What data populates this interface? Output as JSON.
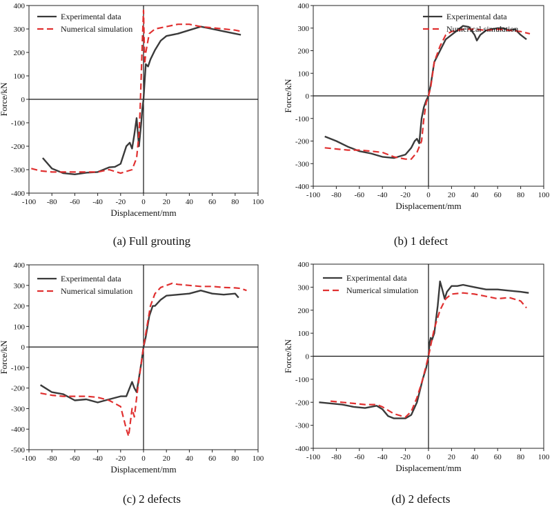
{
  "chart_data": [
    {
      "type": "line",
      "caption": "(a) Full grouting",
      "xlabel": "Displacement/mm",
      "ylabel": "Force/kN",
      "xlim": [
        -100,
        100
      ],
      "ylim": [
        -400,
        400
      ],
      "xticks": [
        "-100",
        "-80",
        "-60",
        "-40",
        "-20",
        "0",
        "20",
        "40",
        "60",
        "80",
        "100"
      ],
      "yticks": [
        "-400",
        "-300",
        "-200",
        "-100",
        "0",
        "100",
        "200",
        "300",
        "400"
      ],
      "legend_placement": "top-left",
      "series": [
        {
          "name": "Experimental data",
          "color": "#3a3a3a",
          "dash": "solid",
          "points": [
            [
              -88,
              -250
            ],
            [
              -80,
              -295
            ],
            [
              -70,
              -315
            ],
            [
              -60,
              -320
            ],
            [
              -50,
              -313
            ],
            [
              -40,
              -310
            ],
            [
              -30,
              -290
            ],
            [
              -25,
              -288
            ],
            [
              -20,
              -275
            ],
            [
              -15,
              -200
            ],
            [
              -12,
              -185
            ],
            [
              -10,
              -210
            ],
            [
              -8,
              -150
            ],
            [
              -6,
              -80
            ],
            [
              -4,
              -200
            ],
            [
              -2,
              -100
            ],
            [
              -1,
              -40
            ],
            [
              0,
              0
            ],
            [
              1,
              80
            ],
            [
              2,
              150
            ],
            [
              4,
              140
            ],
            [
              6,
              170
            ],
            [
              10,
              210
            ],
            [
              15,
              250
            ],
            [
              20,
              270
            ],
            [
              30,
              280
            ],
            [
              40,
              295
            ],
            [
              50,
              310
            ],
            [
              60,
              300
            ],
            [
              70,
              290
            ],
            [
              80,
              280
            ],
            [
              85,
              275
            ]
          ]
        },
        {
          "name": "Numerical simulation",
          "color": "#e03030",
          "dash": "dashed",
          "points": [
            [
              -98,
              -295
            ],
            [
              -90,
              -305
            ],
            [
              -80,
              -310
            ],
            [
              -70,
              -310
            ],
            [
              -60,
              -310
            ],
            [
              -50,
              -310
            ],
            [
              -40,
              -310
            ],
            [
              -30,
              -300
            ],
            [
              -20,
              -315
            ],
            [
              -10,
              -300
            ],
            [
              -6,
              -250
            ],
            [
              -4,
              -150
            ],
            [
              -3,
              -50
            ],
            [
              -2,
              100
            ],
            [
              -1,
              250
            ],
            [
              0,
              380
            ],
            [
              1,
              150
            ],
            [
              2,
              200
            ],
            [
              5,
              280
            ],
            [
              10,
              300
            ],
            [
              20,
              310
            ],
            [
              30,
              320
            ],
            [
              40,
              320
            ],
            [
              50,
              310
            ],
            [
              60,
              305
            ],
            [
              70,
              300
            ],
            [
              80,
              295
            ],
            [
              85,
              290
            ]
          ]
        }
      ]
    },
    {
      "type": "line",
      "caption": "(b) 1 defect",
      "xlabel": "Displacement/mm",
      "ylabel": "Force/kN",
      "xlim": [
        -100,
        100
      ],
      "ylim": [
        -400,
        400
      ],
      "xticks": [
        "-100",
        "-80",
        "-60",
        "-40",
        "-20",
        "0",
        "20",
        "40",
        "60",
        "80",
        "100"
      ],
      "yticks": [
        "-400",
        "-300",
        "-200",
        "-100",
        "0",
        "100",
        "200",
        "300",
        "400"
      ],
      "legend_placement": "top-right",
      "series": [
        {
          "name": "Experimental data",
          "color": "#3a3a3a",
          "dash": "solid",
          "points": [
            [
              -90,
              -180
            ],
            [
              -80,
              -200
            ],
            [
              -70,
              -225
            ],
            [
              -60,
              -245
            ],
            [
              -50,
              -255
            ],
            [
              -40,
              -270
            ],
            [
              -30,
              -275
            ],
            [
              -20,
              -260
            ],
            [
              -15,
              -230
            ],
            [
              -12,
              -200
            ],
            [
              -10,
              -190
            ],
            [
              -8,
              -210
            ],
            [
              -6,
              -100
            ],
            [
              -4,
              -50
            ],
            [
              -2,
              -20
            ],
            [
              0,
              0
            ],
            [
              2,
              50
            ],
            [
              5,
              150
            ],
            [
              10,
              200
            ],
            [
              15,
              250
            ],
            [
              20,
              270
            ],
            [
              25,
              290
            ],
            [
              30,
              310
            ],
            [
              35,
              305
            ],
            [
              40,
              270
            ],
            [
              42,
              245
            ],
            [
              45,
              270
            ],
            [
              50,
              290
            ],
            [
              60,
              300
            ],
            [
              65,
              300
            ],
            [
              70,
              290
            ],
            [
              75,
              295
            ],
            [
              80,
              270
            ],
            [
              85,
              250
            ]
          ]
        },
        {
          "name": "Numerical simulation",
          "color": "#e03030",
          "dash": "dashed",
          "points": [
            [
              -90,
              -230
            ],
            [
              -80,
              -235
            ],
            [
              -70,
              -240
            ],
            [
              -60,
              -240
            ],
            [
              -50,
              -245
            ],
            [
              -40,
              -250
            ],
            [
              -30,
              -270
            ],
            [
              -20,
              -280
            ],
            [
              -15,
              -280
            ],
            [
              -10,
              -250
            ],
            [
              -6,
              -200
            ],
            [
              -4,
              -100
            ],
            [
              -2,
              -30
            ],
            [
              0,
              0
            ],
            [
              2,
              40
            ],
            [
              5,
              150
            ],
            [
              10,
              220
            ],
            [
              15,
              270
            ],
            [
              20,
              285
            ],
            [
              30,
              295
            ],
            [
              40,
              295
            ],
            [
              50,
              290
            ],
            [
              60,
              295
            ],
            [
              70,
              290
            ],
            [
              80,
              285
            ],
            [
              88,
              275
            ]
          ]
        }
      ]
    },
    {
      "type": "line",
      "caption": "(c) 2 defects",
      "xlabel": "Displacement/mm",
      "ylabel": "Force/kN",
      "xlim": [
        -100,
        100
      ],
      "ylim": [
        -500,
        400
      ],
      "xticks": [
        "-100",
        "-80",
        "-60",
        "-40",
        "-20",
        "0",
        "20",
        "40",
        "60",
        "80",
        "100"
      ],
      "yticks": [
        "-500",
        "-400",
        "-300",
        "-200",
        "-100",
        "0",
        "100",
        "200",
        "300",
        "400"
      ],
      "legend_placement": "top-left",
      "series": [
        {
          "name": "Experimental data",
          "color": "#3a3a3a",
          "dash": "solid",
          "points": [
            [
              -90,
              -185
            ],
            [
              -80,
              -220
            ],
            [
              -70,
              -230
            ],
            [
              -60,
              -260
            ],
            [
              -50,
              -255
            ],
            [
              -40,
              -270
            ],
            [
              -30,
              -255
            ],
            [
              -20,
              -240
            ],
            [
              -15,
              -240
            ],
            [
              -10,
              -170
            ],
            [
              -8,
              -200
            ],
            [
              -6,
              -220
            ],
            [
              -4,
              -150
            ],
            [
              -2,
              -80
            ],
            [
              0,
              0
            ],
            [
              2,
              50
            ],
            [
              5,
              150
            ],
            [
              8,
              200
            ],
            [
              10,
              200
            ],
            [
              15,
              230
            ],
            [
              20,
              250
            ],
            [
              30,
              255
            ],
            [
              40,
              260
            ],
            [
              50,
              275
            ],
            [
              60,
              260
            ],
            [
              70,
              255
            ],
            [
              80,
              260
            ],
            [
              83,
              240
            ]
          ]
        },
        {
          "name": "Numerical simulation",
          "color": "#e03030",
          "dash": "dashed",
          "points": [
            [
              -90,
              -225
            ],
            [
              -80,
              -235
            ],
            [
              -70,
              -240
            ],
            [
              -60,
              -240
            ],
            [
              -50,
              -240
            ],
            [
              -40,
              -245
            ],
            [
              -30,
              -260
            ],
            [
              -20,
              -290
            ],
            [
              -15,
              -400
            ],
            [
              -13,
              -435
            ],
            [
              -10,
              -300
            ],
            [
              -8,
              -340
            ],
            [
              -5,
              -200
            ],
            [
              -2,
              -80
            ],
            [
              0,
              0
            ],
            [
              3,
              100
            ],
            [
              6,
              200
            ],
            [
              10,
              260
            ],
            [
              15,
              290
            ],
            [
              20,
              300
            ],
            [
              25,
              310
            ],
            [
              30,
              305
            ],
            [
              40,
              300
            ],
            [
              50,
              295
            ],
            [
              60,
              295
            ],
            [
              70,
              290
            ],
            [
              80,
              288
            ],
            [
              85,
              285
            ],
            [
              90,
              275
            ]
          ]
        }
      ]
    },
    {
      "type": "line",
      "caption": "(d) 2 defects",
      "xlabel": "Displacement/mm",
      "ylabel": "Force/kN",
      "xlim": [
        -100,
        100
      ],
      "ylim": [
        -400,
        400
      ],
      "xticks": [
        "-100",
        "-80",
        "-60",
        "-40",
        "-20",
        "0",
        "20",
        "40",
        "60",
        "80",
        "100"
      ],
      "yticks": [
        "-400",
        "-300",
        "-200",
        "-100",
        "0",
        "100",
        "200",
        "300",
        "400"
      ],
      "legend_placement": "top-left",
      "series": [
        {
          "name": "Experimental data",
          "color": "#3a3a3a",
          "dash": "solid",
          "points": [
            [
              -95,
              -200
            ],
            [
              -85,
              -205
            ],
            [
              -75,
              -210
            ],
            [
              -65,
              -220
            ],
            [
              -55,
              -225
            ],
            [
              -45,
              -215
            ],
            [
              -40,
              -230
            ],
            [
              -35,
              -260
            ],
            [
              -30,
              -270
            ],
            [
              -25,
              -270
            ],
            [
              -20,
              -270
            ],
            [
              -15,
              -255
            ],
            [
              -10,
              -200
            ],
            [
              -5,
              -100
            ],
            [
              -2,
              -50
            ],
            [
              0,
              0
            ],
            [
              1,
              60
            ],
            [
              2,
              80
            ],
            [
              3,
              70
            ],
            [
              5,
              100
            ],
            [
              8,
              220
            ],
            [
              10,
              325
            ],
            [
              12,
              290
            ],
            [
              14,
              250
            ],
            [
              16,
              280
            ],
            [
              20,
              305
            ],
            [
              25,
              305
            ],
            [
              30,
              310
            ],
            [
              40,
              300
            ],
            [
              50,
              290
            ],
            [
              60,
              290
            ],
            [
              70,
              285
            ],
            [
              80,
              280
            ],
            [
              87,
              275
            ]
          ]
        },
        {
          "name": "Numerical simulation",
          "color": "#e03030",
          "dash": "dashed",
          "points": [
            [
              -85,
              -195
            ],
            [
              -75,
              -200
            ],
            [
              -65,
              -205
            ],
            [
              -55,
              -210
            ],
            [
              -45,
              -210
            ],
            [
              -40,
              -220
            ],
            [
              -30,
              -250
            ],
            [
              -20,
              -265
            ],
            [
              -15,
              -240
            ],
            [
              -10,
              -180
            ],
            [
              -5,
              -100
            ],
            [
              0,
              0
            ],
            [
              5,
              120
            ],
            [
              10,
              200
            ],
            [
              15,
              250
            ],
            [
              20,
              270
            ],
            [
              30,
              275
            ],
            [
              40,
              270
            ],
            [
              50,
              260
            ],
            [
              60,
              250
            ],
            [
              70,
              255
            ],
            [
              80,
              240
            ],
            [
              85,
              210
            ]
          ]
        }
      ]
    }
  ]
}
